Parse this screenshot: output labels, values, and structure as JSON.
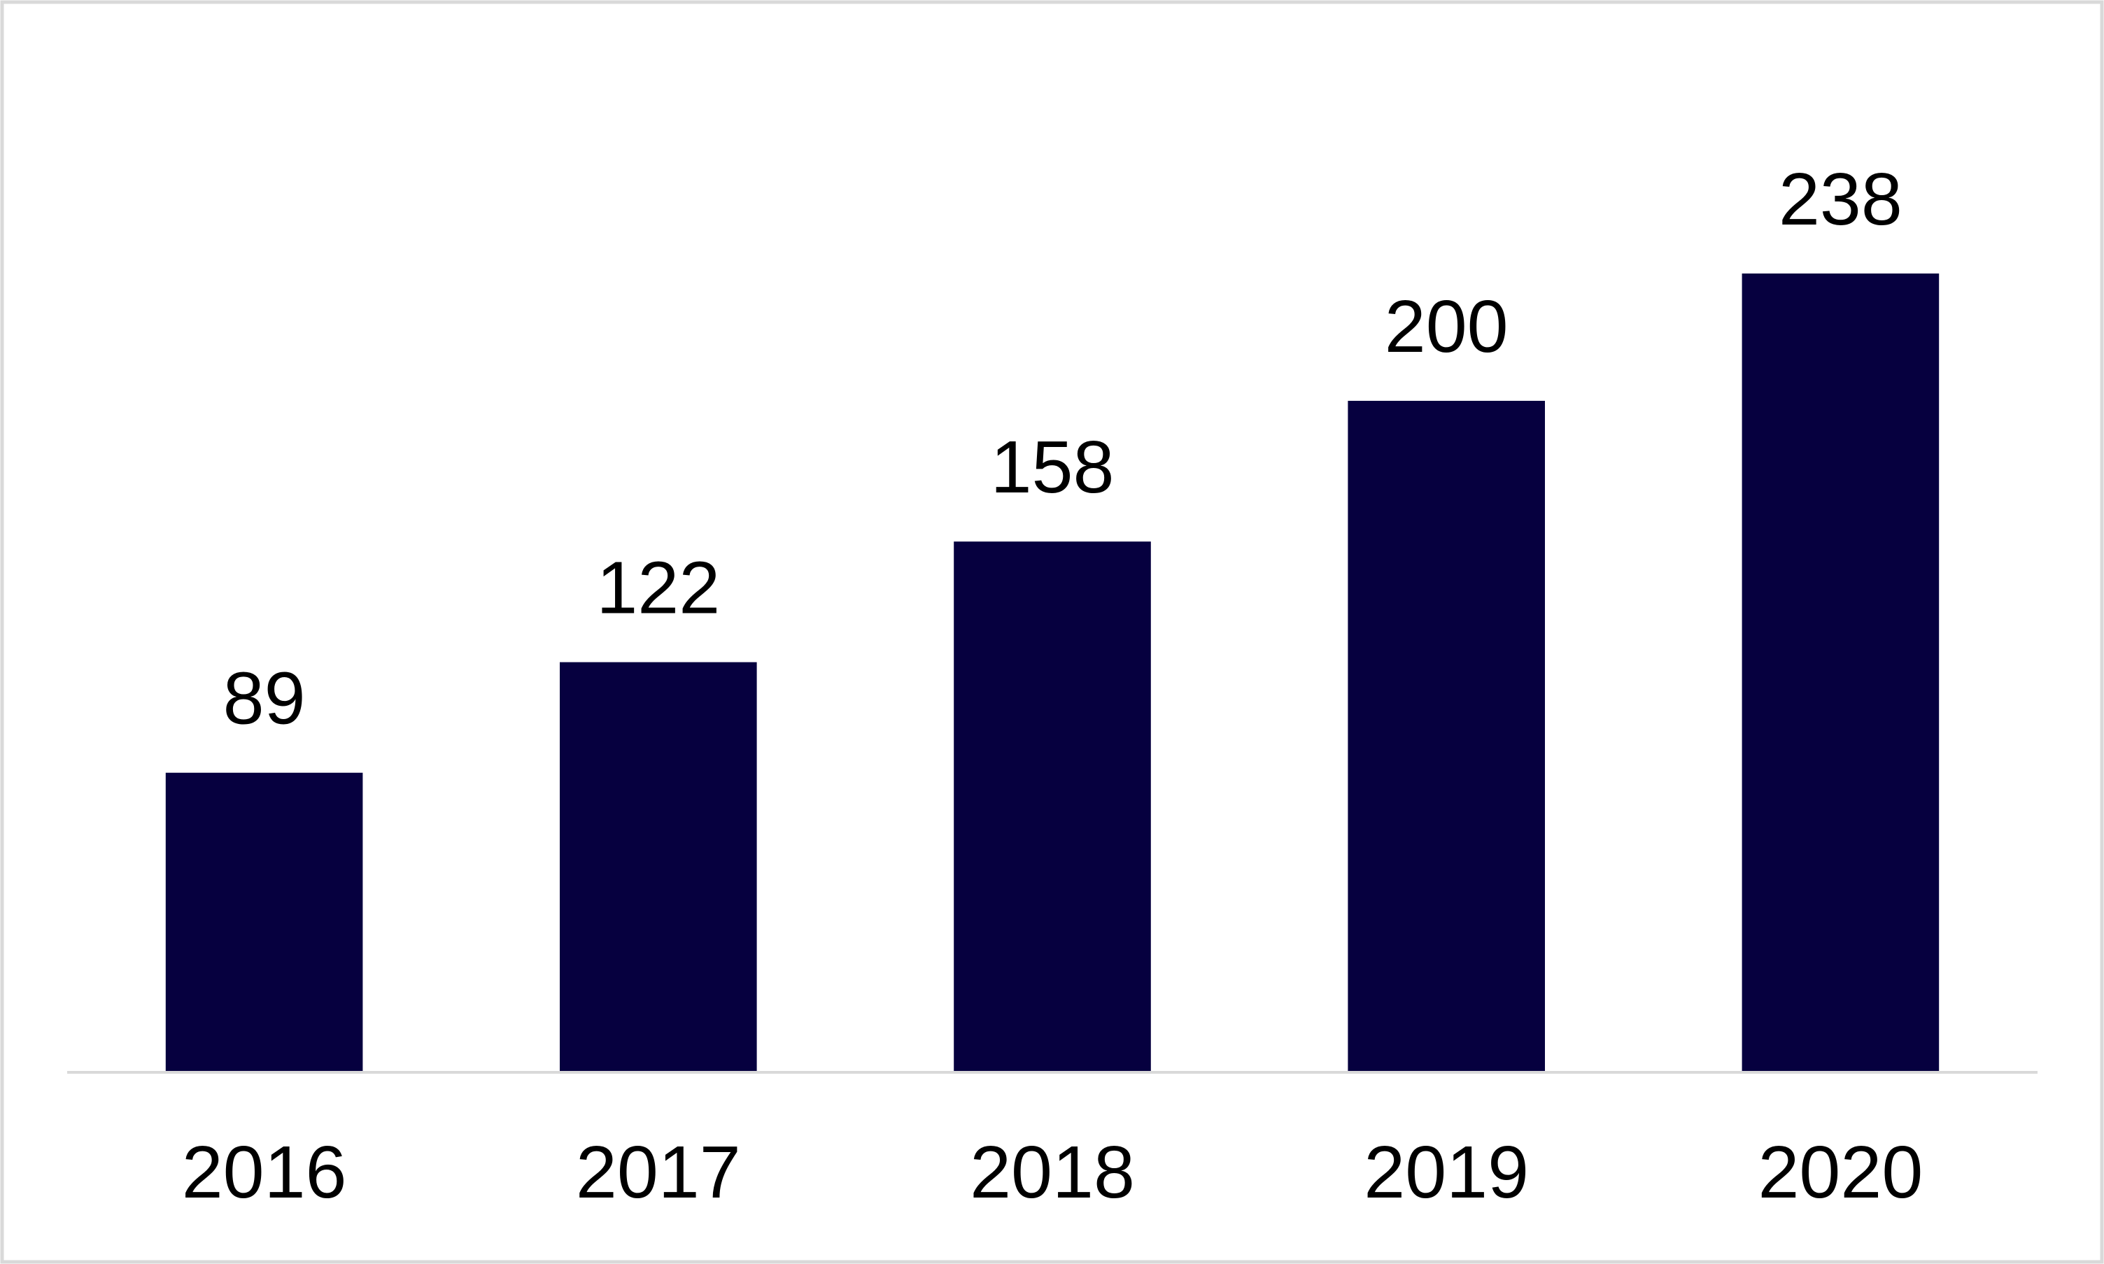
{
  "chart_data": {
    "type": "bar",
    "categories": [
      "2016",
      "2017",
      "2018",
      "2019",
      "2020"
    ],
    "values": [
      89,
      122,
      158,
      200,
      238
    ],
    "color": "#06003f"
  }
}
